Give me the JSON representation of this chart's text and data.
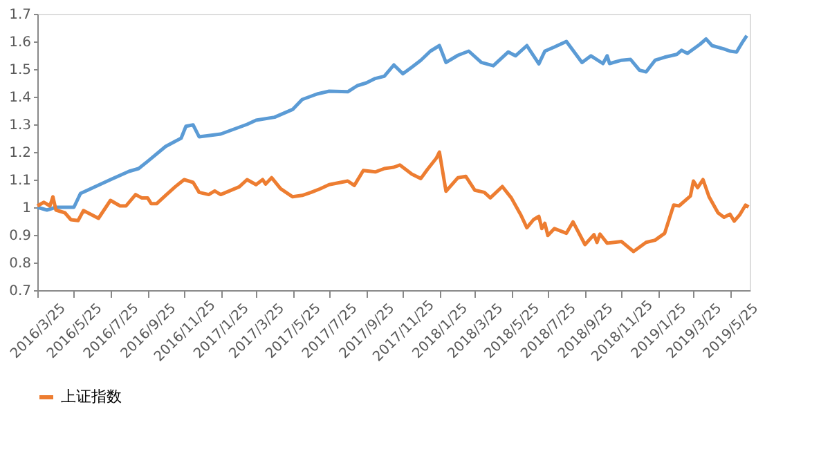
{
  "chart_data": {
    "type": "line",
    "ylim": [
      0.7,
      1.7
    ],
    "yticks": [
      0.7,
      0.8,
      0.9,
      1,
      1.1,
      1.2,
      1.3,
      1.4,
      1.5,
      1.6,
      1.7
    ],
    "xlim": [
      "2016-03-25",
      "2019-06-27"
    ],
    "xticks": [
      {
        "value": "2016-03-25",
        "label": "2016/3/25"
      },
      {
        "value": "2016-05-25",
        "label": "2016/5/25"
      },
      {
        "value": "2016-07-25",
        "label": "2016/7/25"
      },
      {
        "value": "2016-09-25",
        "label": "2016/9/25"
      },
      {
        "value": "2016-11-25",
        "label": "2016/11/25"
      },
      {
        "value": "2017-01-25",
        "label": "2017/1/25"
      },
      {
        "value": "2017-03-25",
        "label": "2017/3/25"
      },
      {
        "value": "2017-05-25",
        "label": "2017/5/25"
      },
      {
        "value": "2017-07-25",
        "label": "2017/7/25"
      },
      {
        "value": "2017-09-25",
        "label": "2017/9/25"
      },
      {
        "value": "2017-11-25",
        "label": "2017/11/25"
      },
      {
        "value": "2018-01-25",
        "label": "2018/1/25"
      },
      {
        "value": "2018-03-25",
        "label": "2018/3/25"
      },
      {
        "value": "2018-05-25",
        "label": "2018/5/25"
      },
      {
        "value": "2018-07-25",
        "label": "2018/7/25"
      },
      {
        "value": "2018-09-25",
        "label": "2018/9/25"
      },
      {
        "value": "2018-11-25",
        "label": "2018/11/25"
      },
      {
        "value": "2019-01-25",
        "label": "2019/1/25"
      },
      {
        "value": "2019-03-25",
        "label": "2019/3/25"
      },
      {
        "value": "2019-05-25",
        "label": "2019/5/25"
      }
    ],
    "grid": false,
    "legend": "bottom",
    "marker": "none",
    "line_style": "solid",
    "series": [
      {
        "color": "#5b9bd5",
        "x": [
          "2016-03-25",
          "2016-04-10",
          "2016-04-25",
          "2016-05-25",
          "2016-06-05",
          "2016-06-25",
          "2016-07-25",
          "2016-08-25",
          "2016-09-10",
          "2016-09-25",
          "2016-10-25",
          "2016-11-20",
          "2016-11-28",
          "2016-12-10",
          "2016-12-20",
          "2017-01-25",
          "2017-03-10",
          "2017-03-25",
          "2017-04-25",
          "2017-05-25",
          "2017-06-10",
          "2017-07-05",
          "2017-07-25",
          "2017-08-25",
          "2017-09-10",
          "2017-09-25",
          "2017-10-10",
          "2017-10-25",
          "2017-11-10",
          "2017-11-25",
          "2017-12-10",
          "2017-12-25",
          "2018-01-10",
          "2018-01-25",
          "2018-02-05",
          "2018-02-25",
          "2018-03-15",
          "2018-04-05",
          "2018-04-25",
          "2018-05-20",
          "2018-06-01",
          "2018-06-20",
          "2018-07-10",
          "2018-07-20",
          "2018-08-05",
          "2018-08-25",
          "2018-09-20",
          "2018-10-05",
          "2018-10-25",
          "2018-11-01",
          "2018-11-05",
          "2018-11-25",
          "2018-12-10",
          "2018-12-25",
          "2019-01-05",
          "2019-01-20",
          "2019-02-05",
          "2019-02-25",
          "2019-03-05",
          "2019-03-15",
          "2019-04-05",
          "2019-04-15",
          "2019-04-25",
          "2019-05-15",
          "2019-05-25",
          "2019-06-05",
          "2019-06-15",
          "2019-06-22"
        ],
        "values": [
          1.0,
          0.99,
          1.0,
          1.0,
          1.05,
          1.07,
          1.1,
          1.13,
          1.14,
          1.166,
          1.22,
          1.25,
          1.293,
          1.298,
          1.255,
          1.265,
          1.3,
          1.315,
          1.326,
          1.354,
          1.39,
          1.41,
          1.42,
          1.418,
          1.44,
          1.45,
          1.466,
          1.474,
          1.515,
          1.483,
          1.507,
          1.532,
          1.565,
          1.585,
          1.524,
          1.55,
          1.565,
          1.524,
          1.512,
          1.562,
          1.548,
          1.585,
          1.519,
          1.565,
          1.58,
          1.6,
          1.524,
          1.548,
          1.52,
          1.548,
          1.52,
          1.532,
          1.535,
          1.496,
          1.49,
          1.532,
          1.543,
          1.553,
          1.568,
          1.557,
          1.59,
          1.609,
          1.585,
          1.573,
          1.565,
          1.562,
          1.598,
          1.621
        ]
      },
      {
        "name": "上证指数",
        "color": "#ed7d31",
        "x": [
          "2016-03-25",
          "2016-04-05",
          "2016-04-15",
          "2016-04-20",
          "2016-04-25",
          "2016-05-10",
          "2016-05-20",
          "2016-06-01",
          "2016-06-10",
          "2016-07-05",
          "2016-07-25",
          "2016-08-10",
          "2016-08-20",
          "2016-09-05",
          "2016-09-15",
          "2016-09-25",
          "2016-10-01",
          "2016-10-10",
          "2016-10-25",
          "2016-11-10",
          "2016-11-25",
          "2016-12-10",
          "2016-12-20",
          "2017-01-05",
          "2017-01-15",
          "2017-01-25",
          "2017-02-25",
          "2017-03-10",
          "2017-03-25",
          "2017-04-05",
          "2017-04-10",
          "2017-04-20",
          "2017-05-05",
          "2017-05-25",
          "2017-06-10",
          "2017-06-25",
          "2017-07-10",
          "2017-07-25",
          "2017-08-25",
          "2017-09-05",
          "2017-09-20",
          "2017-10-10",
          "2017-10-25",
          "2017-11-10",
          "2017-11-20",
          "2017-12-10",
          "2017-12-25",
          "2018-01-05",
          "2018-01-20",
          "2018-01-25",
          "2018-02-05",
          "2018-02-25",
          "2018-03-10",
          "2018-03-25",
          "2018-04-10",
          "2018-04-20",
          "2018-05-10",
          "2018-05-25",
          "2018-06-10",
          "2018-06-20",
          "2018-07-01",
          "2018-07-10",
          "2018-07-15",
          "2018-07-20",
          "2018-07-25",
          "2018-08-05",
          "2018-08-25",
          "2018-09-05",
          "2018-09-25",
          "2018-10-10",
          "2018-10-15",
          "2018-10-20",
          "2018-11-01",
          "2018-11-25",
          "2018-12-15",
          "2019-01-05",
          "2019-01-20",
          "2019-02-05",
          "2019-02-20",
          "2019-03-01",
          "2019-03-20",
          "2019-03-25",
          "2019-04-01",
          "2019-04-10",
          "2019-04-20",
          "2019-05-05",
          "2019-05-15",
          "2019-05-25",
          "2019-06-01",
          "2019-06-10",
          "2019-06-20",
          "2019-06-25"
        ],
        "values": [
          1.005,
          1.018,
          1.005,
          1.038,
          0.99,
          0.98,
          0.955,
          0.952,
          0.988,
          0.96,
          1.025,
          1.005,
          1.005,
          1.046,
          1.034,
          1.034,
          1.013,
          1.013,
          1.043,
          1.074,
          1.1,
          1.09,
          1.054,
          1.046,
          1.059,
          1.046,
          1.074,
          1.1,
          1.082,
          1.1,
          1.084,
          1.107,
          1.067,
          1.038,
          1.043,
          1.054,
          1.067,
          1.082,
          1.095,
          1.079,
          1.133,
          1.128,
          1.14,
          1.145,
          1.153,
          1.12,
          1.104,
          1.137,
          1.178,
          1.2,
          1.058,
          1.107,
          1.112,
          1.062,
          1.054,
          1.034,
          1.075,
          1.034,
          0.972,
          0.926,
          0.955,
          0.967,
          0.923,
          0.942,
          0.898,
          0.923,
          0.906,
          0.947,
          0.865,
          0.901,
          0.873,
          0.903,
          0.87,
          0.876,
          0.84,
          0.873,
          0.881,
          0.906,
          1.008,
          1.005,
          1.041,
          1.095,
          1.071,
          1.1,
          1.038,
          0.98,
          0.964,
          0.975,
          0.95,
          0.972,
          1.008,
          1.001
        ]
      }
    ]
  }
}
